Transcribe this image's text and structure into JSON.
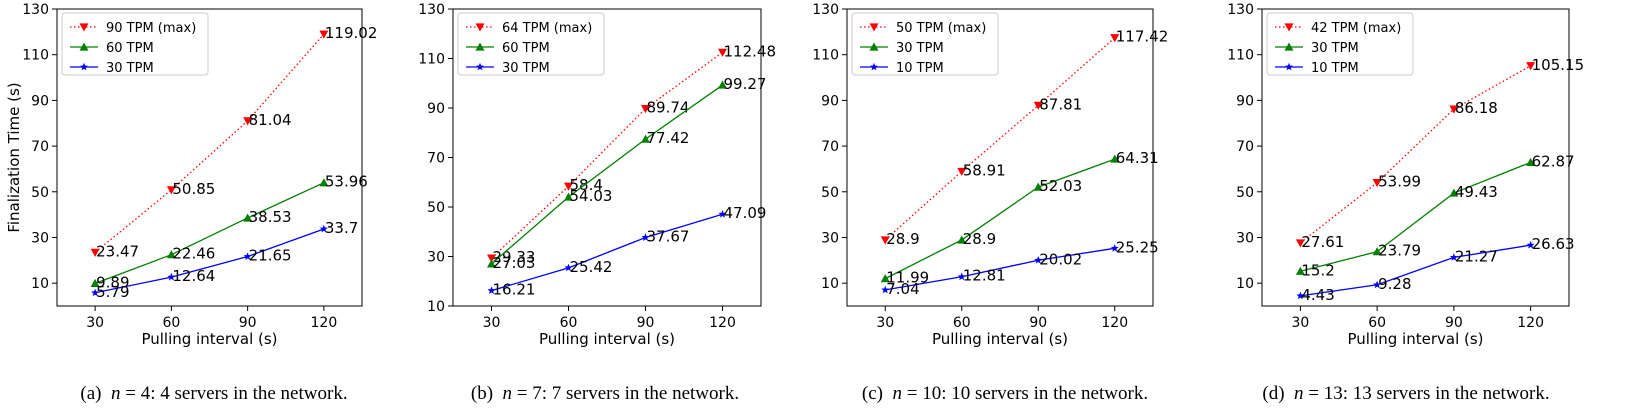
{
  "chart_data": [
    {
      "type": "line",
      "ylabel": "Finalization Time (s)",
      "xlabel": "Pulling interval (s)",
      "x": [
        30,
        60,
        90,
        120
      ],
      "xticks": [
        30,
        60,
        90,
        120
      ],
      "xlim": [
        15,
        135
      ],
      "ylim": [
        0,
        130
      ],
      "yticks": [
        10,
        30,
        50,
        70,
        90,
        110,
        130
      ],
      "legend_position": "top-left",
      "series": [
        {
          "name": "90 TPM (max)",
          "color": "#ff0000",
          "style": "dotted",
          "marker": "triangle-down",
          "values": [
            23.47,
            50.85,
            81.04,
            119.02
          ],
          "labels": [
            "23.47",
            "50.85",
            "81.04",
            "119.02"
          ]
        },
        {
          "name": "60 TPM",
          "color": "#008000",
          "style": "solid",
          "marker": "triangle-up",
          "values": [
            9.89,
            22.46,
            38.53,
            53.96
          ],
          "labels": [
            "9.89",
            "22.46",
            "38.53",
            "53.96"
          ]
        },
        {
          "name": "30 TPM",
          "color": "#0000ff",
          "style": "solid",
          "marker": "star",
          "values": [
            5.79,
            12.64,
            21.65,
            33.7
          ],
          "labels": [
            "5.79",
            "12.64",
            "21.65",
            "33.7"
          ]
        }
      ],
      "caption": {
        "prefix": "(a)",
        "var": "n",
        "rest": " = 4: 4 servers in the network."
      }
    },
    {
      "type": "line",
      "ylabel": "",
      "xlabel": "Pulling interval (s)",
      "x": [
        30,
        60,
        90,
        120
      ],
      "xticks": [
        30,
        60,
        90,
        120
      ],
      "xlim": [
        15,
        135
      ],
      "ylim": [
        10,
        130
      ],
      "yticks": [
        10,
        30,
        50,
        70,
        90,
        110,
        130
      ],
      "legend_position": "top-left",
      "series": [
        {
          "name": "64 TPM (max)",
          "color": "#ff0000",
          "style": "dotted",
          "marker": "triangle-down",
          "values": [
            29.33,
            58.4,
            89.74,
            112.48
          ],
          "labels": [
            "29.33",
            "58.4",
            "89.74",
            "112.48"
          ]
        },
        {
          "name": "60 TPM",
          "color": "#008000",
          "style": "solid",
          "marker": "triangle-up",
          "values": [
            27.03,
            54.03,
            77.42,
            99.27
          ],
          "labels": [
            "27.03",
            "54.03",
            "77.42",
            "99.27"
          ]
        },
        {
          "name": "30 TPM",
          "color": "#0000ff",
          "style": "solid",
          "marker": "star",
          "values": [
            16.21,
            25.42,
            37.67,
            47.09
          ],
          "labels": [
            "16.21",
            "25.42",
            "37.67",
            "47.09"
          ]
        }
      ],
      "caption": {
        "prefix": "(b)",
        "var": "n",
        "rest": " = 7: 7 servers in the network."
      }
    },
    {
      "type": "line",
      "ylabel": "",
      "xlabel": "Pulling interval (s)",
      "x": [
        30,
        60,
        90,
        120
      ],
      "xticks": [
        30,
        60,
        90,
        120
      ],
      "xlim": [
        15,
        135
      ],
      "ylim": [
        0,
        130
      ],
      "yticks": [
        10,
        30,
        50,
        70,
        90,
        110,
        130
      ],
      "legend_position": "top-left",
      "series": [
        {
          "name": "50 TPM (max)",
          "color": "#ff0000",
          "style": "dotted",
          "marker": "triangle-down",
          "values": [
            28.9,
            58.91,
            87.81,
            117.42
          ],
          "labels": [
            "28.9",
            "58.91",
            "87.81",
            "117.42"
          ]
        },
        {
          "name": "30 TPM",
          "color": "#008000",
          "style": "solid",
          "marker": "triangle-up",
          "values": [
            11.99,
            28.9,
            52.03,
            64.31
          ],
          "labels": [
            "11.99",
            "28.9",
            "52.03",
            "64.31"
          ]
        },
        {
          "name": "10 TPM",
          "color": "#0000ff",
          "style": "solid",
          "marker": "star",
          "values": [
            7.04,
            12.81,
            20.02,
            25.25
          ],
          "labels": [
            "7.04",
            "12.81",
            "20.02",
            "25.25"
          ]
        }
      ],
      "caption": {
        "prefix": "(c)",
        "var": "n",
        "rest": " = 10: 10 servers in the network."
      }
    },
    {
      "type": "line",
      "ylabel": "",
      "xlabel": "Pulling interval (s)",
      "x": [
        30,
        60,
        90,
        120
      ],
      "xticks": [
        30,
        60,
        90,
        120
      ],
      "xlim": [
        15,
        135
      ],
      "ylim": [
        0,
        130
      ],
      "yticks": [
        10,
        30,
        50,
        70,
        90,
        110,
        130
      ],
      "legend_position": "top-left",
      "series": [
        {
          "name": "42 TPM (max)",
          "color": "#ff0000",
          "style": "dotted",
          "marker": "triangle-down",
          "values": [
            27.61,
            53.99,
            86.18,
            105.15
          ],
          "labels": [
            "27.61",
            "53.99",
            "86.18",
            "105.15"
          ]
        },
        {
          "name": "30 TPM",
          "color": "#008000",
          "style": "solid",
          "marker": "triangle-up",
          "values": [
            15.2,
            23.79,
            49.43,
            62.87
          ],
          "labels": [
            "15.2",
            "23.79",
            "49.43",
            "62.87"
          ]
        },
        {
          "name": "10 TPM",
          "color": "#0000ff",
          "style": "solid",
          "marker": "star",
          "values": [
            4.43,
            9.28,
            21.27,
            26.63
          ],
          "labels": [
            "4.43",
            "9.28",
            "21.27",
            "26.63"
          ]
        }
      ],
      "caption": {
        "prefix": "(d)",
        "var": "n",
        "rest": " = 13: 13 servers in the network."
      }
    }
  ]
}
